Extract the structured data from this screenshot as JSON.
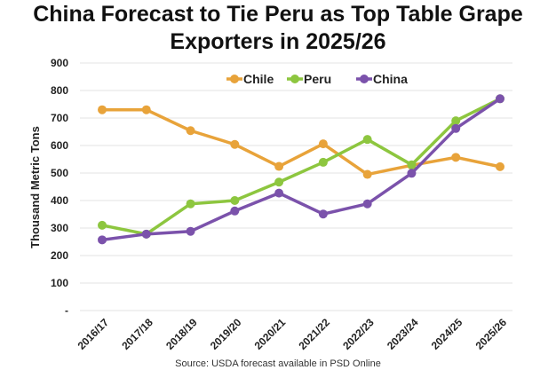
{
  "chart_data": {
    "type": "line",
    "title_lines": [
      "China Forecast to Tie Peru as Top Table Grape",
      "Exporters in 2025/26"
    ],
    "xlabel": "",
    "ylabel": "Thousand Metric Tons",
    "source": "Source: USDA forecast available in PSD Online",
    "categories": [
      "2016/17",
      "2017/18",
      "2018/19",
      "2019/20",
      "2020/21",
      "2021/22",
      "2022/23",
      "2023/24",
      "2024/25",
      "2025/26"
    ],
    "ylim": [
      0,
      900
    ],
    "yticks": [
      0,
      100,
      200,
      300,
      400,
      500,
      600,
      700,
      800,
      900
    ],
    "ytick_labels": [
      "-",
      "100",
      "200",
      "300",
      "400",
      "500",
      "600",
      "700",
      "800",
      "900"
    ],
    "grid": true,
    "legend_position": "top-center",
    "series": [
      {
        "name": "Chile",
        "color": "#E8A33A",
        "values": [
          730,
          730,
          654,
          604,
          524,
          606,
          495,
          528,
          557,
          523
        ]
      },
      {
        "name": "Peru",
        "color": "#8DC63F",
        "values": [
          310,
          278,
          388,
          400,
          467,
          539,
          622,
          530,
          690,
          770
        ]
      },
      {
        "name": "China",
        "color": "#7B52AB",
        "values": [
          257,
          278,
          288,
          362,
          427,
          351,
          388,
          499,
          662,
          770
        ]
      }
    ]
  }
}
